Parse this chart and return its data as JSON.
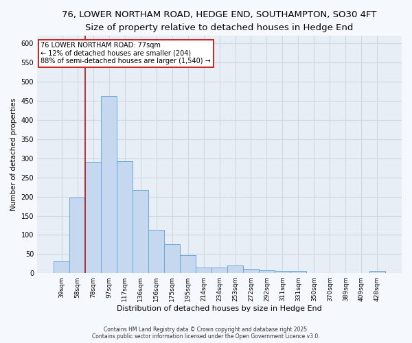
{
  "title_line1": "76, LOWER NORTHAM ROAD, HEDGE END, SOUTHAMPTON, SO30 4FT",
  "title_line2": "Size of property relative to detached houses in Hedge End",
  "xlabel": "Distribution of detached houses by size in Hedge End",
  "ylabel": "Number of detached properties",
  "bar_labels": [
    "39sqm",
    "58sqm",
    "78sqm",
    "97sqm",
    "117sqm",
    "136sqm",
    "156sqm",
    "175sqm",
    "195sqm",
    "214sqm",
    "234sqm",
    "253sqm",
    "272sqm",
    "292sqm",
    "311sqm",
    "331sqm",
    "350sqm",
    "370sqm",
    "389sqm",
    "409sqm",
    "428sqm"
  ],
  "bar_values": [
    30,
    198,
    290,
    462,
    293,
    218,
    113,
    75,
    47,
    15,
    15,
    20,
    11,
    8,
    5,
    5,
    0,
    0,
    0,
    0,
    5
  ],
  "bar_color": "#c5d8f0",
  "bar_edge_color": "#6aaad4",
  "vline_x_index": 2,
  "vline_color": "#bb2222",
  "annotation_text": "76 LOWER NORTHAM ROAD: 77sqm\n← 12% of detached houses are smaller (204)\n88% of semi-detached houses are larger (1,540) →",
  "annotation_box_facecolor": "#ffffff",
  "annotation_box_edgecolor": "#cc2222",
  "fig_facecolor": "#f5f8fc",
  "ax_facecolor": "#e8eef5",
  "grid_color": "#d0d8e4",
  "footer_line1": "Contains HM Land Registry data © Crown copyright and database right 2025.",
  "footer_line2": "Contains public sector information licensed under the Open Government Licence v3.0.",
  "ylim": [
    0,
    620
  ],
  "yticks": [
    0,
    50,
    100,
    150,
    200,
    250,
    300,
    350,
    400,
    450,
    500,
    550,
    600
  ],
  "title1_fontsize": 9.5,
  "title2_fontsize": 8.5,
  "xlabel_fontsize": 8,
  "ylabel_fontsize": 7.5,
  "tick_fontsize": 6.5,
  "annot_fontsize": 7,
  "footer_fontsize": 5.5
}
